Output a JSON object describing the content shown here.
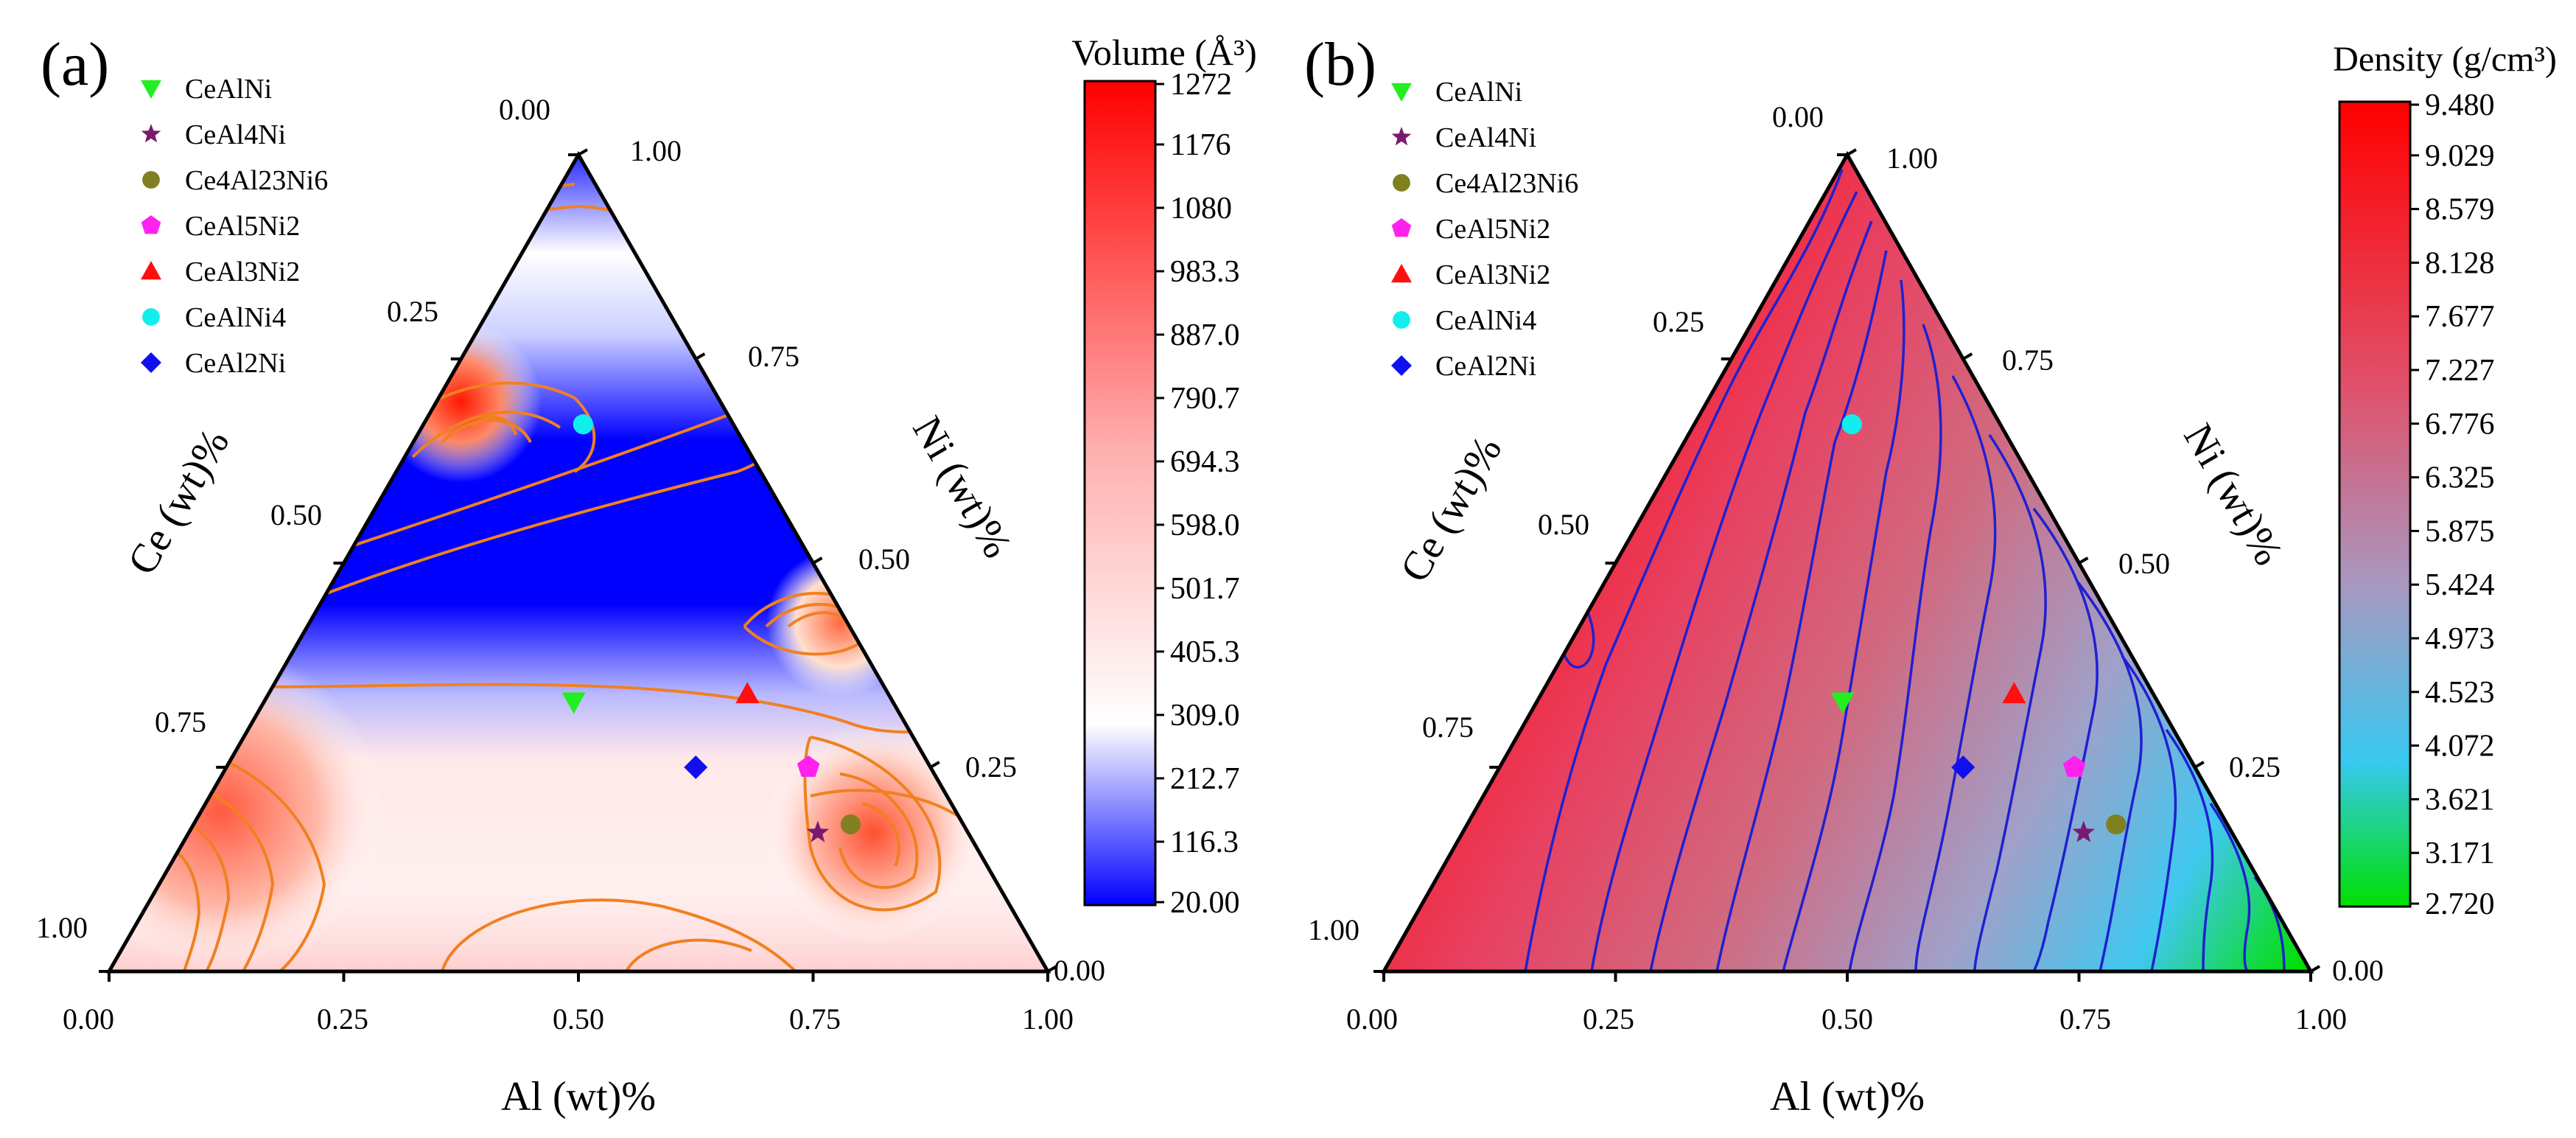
{
  "figure": {
    "panels": [
      {
        "panel_label": "(a)",
        "colorbar_title": "Volume (Å³)",
        "colorbar_ticks": [
          "1272",
          "1176",
          "1080",
          "983.3",
          "887.0",
          "790.7",
          "694.3",
          "598.0",
          "501.7",
          "405.3",
          "309.0",
          "212.7",
          "116.3",
          "20.00"
        ],
        "colorbar_colors": [
          "#ff0000",
          "#ffffff",
          "#0000ff"
        ],
        "colormap_contour_color": "#f08020"
      },
      {
        "panel_label": "(b)",
        "colorbar_title": "Density (g/cm³)",
        "colorbar_ticks": [
          "9.480",
          "9.029",
          "8.579",
          "8.128",
          "7.677",
          "7.227",
          "6.776",
          "6.325",
          "5.875",
          "5.424",
          "4.973",
          "4.523",
          "4.072",
          "3.621",
          "3.171",
          "2.720"
        ],
        "colorbar_colors": [
          "#ff0000",
          "#d0607a",
          "#9aa0c8",
          "#40c8f0",
          "#00e000"
        ],
        "colormap_contour_color": "#2020d0"
      }
    ],
    "axes": {
      "bottom_label": "Al (wt)%",
      "left_label": "Ce (wt)%",
      "right_label": "Ni (wt)%",
      "bottom_ticks": [
        "0.00",
        "0.25",
        "0.50",
        "0.75",
        "1.00"
      ],
      "left_ticks": [
        "0.00",
        "0.25",
        "0.50",
        "0.75",
        "1.00"
      ],
      "right_ticks": [
        "0.00",
        "0.25",
        "0.50",
        "0.75",
        "1.00"
      ]
    }
  },
  "chart_data": [
    {
      "type": "scatter",
      "subtype": "ternary",
      "panel": "(a)",
      "title": "",
      "axes": {
        "a": "Al (wt)%",
        "b": "Ni (wt)%",
        "c": "Ce (wt)%"
      },
      "colorbar": {
        "label": "Volume (Å³)",
        "range": [
          20.0,
          1320.0
        ]
      },
      "series": [
        {
          "name": "CeAlNi",
          "marker": "triangle-down",
          "color": "#22ee22",
          "Al": 0.33,
          "Ni": 0.33,
          "Ce": 0.34
        },
        {
          "name": "CeAl4Ni",
          "marker": "star",
          "color": "#7a1a6e",
          "Al": 0.67,
          "Ni": 0.17,
          "Ce": 0.16
        },
        {
          "name": "Ce4Al23Ni6",
          "marker": "circle",
          "color": "#808020",
          "Al": 0.7,
          "Ni": 0.18,
          "Ce": 0.12
        },
        {
          "name": "CeAl5Ni2",
          "marker": "pentagon",
          "color": "#ff22ee",
          "Al": 0.62,
          "Ni": 0.25,
          "Ce": 0.13
        },
        {
          "name": "CeAl3Ni2",
          "marker": "triangle-up",
          "color": "#ff1010",
          "Al": 0.51,
          "Ni": 0.34,
          "Ce": 0.15
        },
        {
          "name": "CeAlNi4",
          "marker": "circle",
          "color": "#11eeee",
          "Al": 0.17,
          "Ni": 0.67,
          "Ce": 0.16
        },
        {
          "name": "CeAl2Ni",
          "marker": "diamond",
          "color": "#1010ee",
          "Al": 0.5,
          "Ni": 0.25,
          "Ce": 0.25
        }
      ]
    },
    {
      "type": "scatter",
      "subtype": "ternary",
      "panel": "(b)",
      "title": "",
      "axes": {
        "a": "Al (wt)%",
        "b": "Ni (wt)%",
        "c": "Ce (wt)%"
      },
      "colorbar": {
        "label": "Density (g/cm³)",
        "range": [
          2.72,
          9.48
        ]
      },
      "series": [
        {
          "name": "CeAlNi",
          "marker": "triangle-down",
          "color": "#22ee22",
          "Al": 0.33,
          "Ni": 0.33,
          "Ce": 0.34
        },
        {
          "name": "CeAl4Ni",
          "marker": "star",
          "color": "#7a1a6e",
          "Al": 0.67,
          "Ni": 0.17,
          "Ce": 0.16
        },
        {
          "name": "Ce4Al23Ni6",
          "marker": "circle",
          "color": "#808020",
          "Al": 0.7,
          "Ni": 0.18,
          "Ce": 0.12
        },
        {
          "name": "CeAl5Ni2",
          "marker": "pentagon",
          "color": "#ff22ee",
          "Al": 0.62,
          "Ni": 0.25,
          "Ce": 0.13
        },
        {
          "name": "CeAl3Ni2",
          "marker": "triangle-up",
          "color": "#ff1010",
          "Al": 0.51,
          "Ni": 0.34,
          "Ce": 0.15
        },
        {
          "name": "CeAlNi4",
          "marker": "circle",
          "color": "#11eeee",
          "Al": 0.17,
          "Ni": 0.67,
          "Ce": 0.16
        },
        {
          "name": "CeAl2Ni",
          "marker": "diamond",
          "color": "#1010ee",
          "Al": 0.5,
          "Ni": 0.25,
          "Ce": 0.25
        }
      ]
    }
  ]
}
